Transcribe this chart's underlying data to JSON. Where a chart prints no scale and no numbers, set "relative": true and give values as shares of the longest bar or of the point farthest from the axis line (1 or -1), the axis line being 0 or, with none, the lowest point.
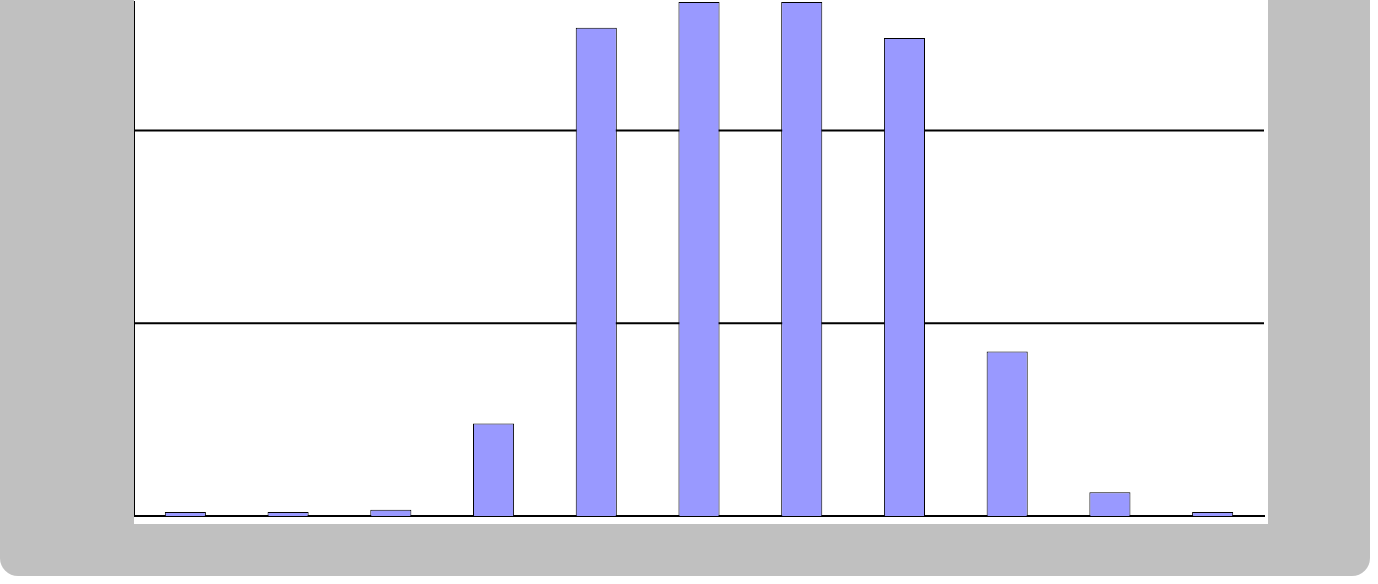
{
  "chart_data": {
    "type": "bar",
    "relative": true,
    "categories": [
      null,
      null,
      null,
      null,
      null,
      null,
      null,
      null,
      null,
      null,
      null
    ],
    "values": [
      0.008,
      0.008,
      0.012,
      0.18,
      0.95,
      1,
      1,
      0.93,
      0.32,
      0.046,
      0.008
    ],
    "color": "#9999ff",
    "legend": false,
    "ref_lines": [
      {
        "axis": "y",
        "value": 0.375,
        "color": "#000000"
      },
      {
        "axis": "y",
        "value": 0.75,
        "color": "#000000"
      }
    ]
  }
}
